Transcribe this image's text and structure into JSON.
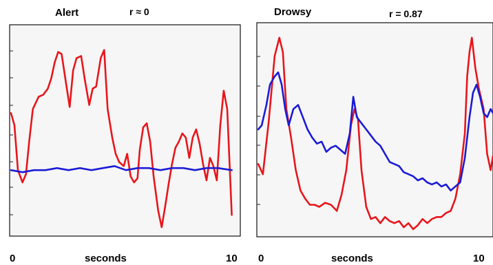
{
  "colors": {
    "red_series": "#e8151b",
    "blue_series": "#1b1bd6",
    "plot_background": "#f6f6f6"
  },
  "chart_data": [
    {
      "type": "line",
      "title": "Alert",
      "annotation": "r ≈ 0",
      "xlabel": "seconds",
      "ylabel": "",
      "x_tick_labels": [
        "0",
        "10"
      ],
      "xlim": [
        0,
        10
      ],
      "ylim": [
        0,
        1
      ],
      "grid": false,
      "series": [
        {
          "color": "#e8151b",
          "x": [
            0,
            0.15,
            0.3,
            0.5,
            0.65,
            0.8,
            0.95,
            1.2,
            1.4,
            1.6,
            1.75,
            1.9,
            2.05,
            2.2,
            2.4,
            2.55,
            2.7,
            2.85,
            3.05,
            3.2,
            3.4,
            3.55,
            3.7,
            3.9,
            4.05,
            4.2,
            4.4,
            4.55,
            4.7,
            4.9,
            5.05,
            5.2,
            5.35,
            5.5,
            5.6,
            5.75,
            5.9,
            6.05,
            6.2,
            6.4,
            6.55,
            6.7,
            6.85,
            7.0,
            7.15,
            7.3,
            7.45,
            7.6,
            7.75,
            7.9,
            8.05,
            8.2,
            8.35,
            8.5,
            8.65,
            8.8,
            8.95,
            9.1,
            9.25,
            9.4,
            9.6
          ],
          "y": [
            0.58,
            0.52,
            0.3,
            0.24,
            0.28,
            0.45,
            0.6,
            0.66,
            0.67,
            0.7,
            0.75,
            0.83,
            0.88,
            0.87,
            0.72,
            0.61,
            0.79,
            0.85,
            0.86,
            0.75,
            0.62,
            0.7,
            0.71,
            0.85,
            0.89,
            0.6,
            0.46,
            0.38,
            0.34,
            0.32,
            0.38,
            0.27,
            0.24,
            0.26,
            0.4,
            0.51,
            0.53,
            0.44,
            0.27,
            0.1,
            0.02,
            0.12,
            0.23,
            0.33,
            0.41,
            0.44,
            0.48,
            0.46,
            0.36,
            0.46,
            0.5,
            0.43,
            0.33,
            0.25,
            0.36,
            0.32,
            0.25,
            0.52,
            0.69,
            0.6,
            0.08
          ]
        },
        {
          "color": "#1b1bd6",
          "x": [
            0,
            0.5,
            1.0,
            1.5,
            2.0,
            2.5,
            3.0,
            3.5,
            4.0,
            4.5,
            5.0,
            5.5,
            6.0,
            6.5,
            7.0,
            7.5,
            8.0,
            8.5,
            9.0,
            9.6
          ],
          "y": [
            0.3,
            0.29,
            0.3,
            0.3,
            0.31,
            0.3,
            0.31,
            0.3,
            0.31,
            0.32,
            0.3,
            0.31,
            0.31,
            0.3,
            0.31,
            0.31,
            0.3,
            0.31,
            0.31,
            0.3
          ]
        }
      ]
    },
    {
      "type": "line",
      "title": "Drowsy",
      "annotation": "r = 0.87",
      "xlabel": "seconds",
      "ylabel": "",
      "x_tick_labels": [
        "0",
        "10"
      ],
      "xlim": [
        0,
        10
      ],
      "ylim": [
        0,
        1
      ],
      "grid": false,
      "series": [
        {
          "color": "#e8151b",
          "x": [
            0,
            0.2,
            0.45,
            0.7,
            0.9,
            1.05,
            1.2,
            1.4,
            1.6,
            1.8,
            2.0,
            2.2,
            2.4,
            2.6,
            2.85,
            3.1,
            3.35,
            3.55,
            3.75,
            3.95,
            4.1,
            4.25,
            4.4,
            4.6,
            4.8,
            5.0,
            5.2,
            5.4,
            5.6,
            5.8,
            6.0,
            6.2,
            6.4,
            6.6,
            6.8,
            7.0,
            7.2,
            7.4,
            7.6,
            7.8,
            8.0,
            8.2,
            8.4,
            8.6,
            8.8,
            8.9,
            9.0,
            9.1,
            9.25,
            9.4,
            9.6,
            9.75,
            9.9,
            10.0
          ],
          "y": [
            0.33,
            0.28,
            0.54,
            0.86,
            0.95,
            0.88,
            0.6,
            0.46,
            0.3,
            0.2,
            0.16,
            0.13,
            0.13,
            0.12,
            0.14,
            0.13,
            0.1,
            0.18,
            0.3,
            0.52,
            0.6,
            0.55,
            0.3,
            0.12,
            0.06,
            0.07,
            0.04,
            0.07,
            0.05,
            0.04,
            0.05,
            0.02,
            0.04,
            0.01,
            0.03,
            0.06,
            0.04,
            0.06,
            0.07,
            0.07,
            0.09,
            0.1,
            0.16,
            0.28,
            0.48,
            0.76,
            0.88,
            0.95,
            0.8,
            0.7,
            0.6,
            0.38,
            0.3,
            0.37
          ]
        },
        {
          "color": "#1b1bd6",
          "x": [
            0,
            0.15,
            0.35,
            0.5,
            0.7,
            0.85,
            1.0,
            1.15,
            1.3,
            1.5,
            1.7,
            1.9,
            2.1,
            2.3,
            2.5,
            2.7,
            2.9,
            3.1,
            3.3,
            3.5,
            3.7,
            3.9,
            4.05,
            4.2,
            4.4,
            4.6,
            4.8,
            5.0,
            5.2,
            5.4,
            5.6,
            5.8,
            6.0,
            6.2,
            6.4,
            6.6,
            6.8,
            7.0,
            7.2,
            7.4,
            7.6,
            7.8,
            8.0,
            8.2,
            8.4,
            8.6,
            8.8,
            9.0,
            9.15,
            9.3,
            9.45,
            9.6,
            9.75,
            9.9,
            10.0
          ],
          "y": [
            0.5,
            0.52,
            0.62,
            0.72,
            0.76,
            0.78,
            0.72,
            0.6,
            0.52,
            0.6,
            0.62,
            0.56,
            0.5,
            0.46,
            0.43,
            0.44,
            0.39,
            0.41,
            0.42,
            0.4,
            0.38,
            0.48,
            0.66,
            0.56,
            0.53,
            0.5,
            0.47,
            0.44,
            0.42,
            0.38,
            0.34,
            0.33,
            0.32,
            0.29,
            0.28,
            0.27,
            0.25,
            0.26,
            0.24,
            0.23,
            0.24,
            0.22,
            0.23,
            0.2,
            0.22,
            0.24,
            0.36,
            0.56,
            0.68,
            0.72,
            0.66,
            0.58,
            0.56,
            0.6,
            0.58
          ]
        }
      ]
    }
  ]
}
